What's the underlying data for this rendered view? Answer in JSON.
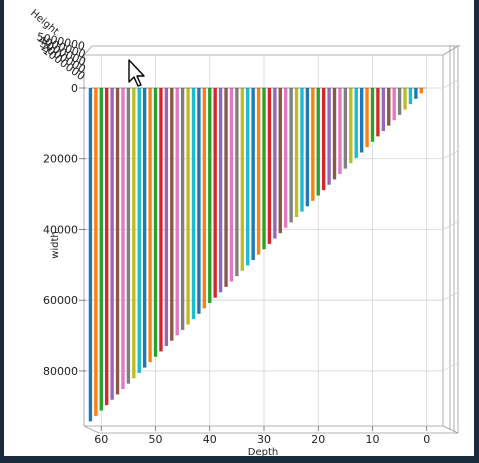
{
  "plot": {
    "x_axis_label": "Depth",
    "y_axis_label": "width",
    "z_axis_label": "Height",
    "x_ticks": [
      "60",
      "50",
      "40",
      "30",
      "20",
      "10",
      "0"
    ],
    "y_ticks": [
      "0",
      "20000",
      "40000",
      "60000",
      "80000"
    ],
    "z_ticks_overlapping": [
      "5000000",
      "4000000",
      "3000000",
      "2000000",
      "1000000"
    ],
    "colors": [
      "#1f77b4",
      "#ff7f0e",
      "#2ca02c",
      "#d62728",
      "#9467bd",
      "#8c564b",
      "#e377c2",
      "#7f7f7f",
      "#bcbd22",
      "#17becf"
    ]
  },
  "chart_data": {
    "type": "bar",
    "title": "",
    "xlabel": "Depth",
    "ylabel": "width",
    "zlabel": "Height",
    "xlim": [
      63,
      -3
    ],
    "ylim": [
      0,
      95000
    ],
    "bar_count": 62,
    "description_of_values": "bar at depth d extends along width from 0 to approximately 1520*d",
    "depths": [
      62,
      61,
      60,
      59,
      58,
      57,
      56,
      55,
      54,
      53,
      52,
      51,
      50,
      49,
      48,
      47,
      46,
      45,
      44,
      43,
      42,
      41,
      40,
      39,
      38,
      37,
      36,
      35,
      34,
      33,
      32,
      31,
      30,
      29,
      28,
      27,
      26,
      25,
      24,
      23,
      22,
      21,
      20,
      19,
      18,
      17,
      16,
      15,
      14,
      13,
      12,
      11,
      10,
      9,
      8,
      7,
      6,
      5,
      4,
      3,
      2,
      1
    ],
    "width_extent_per_depth": 1520
  }
}
